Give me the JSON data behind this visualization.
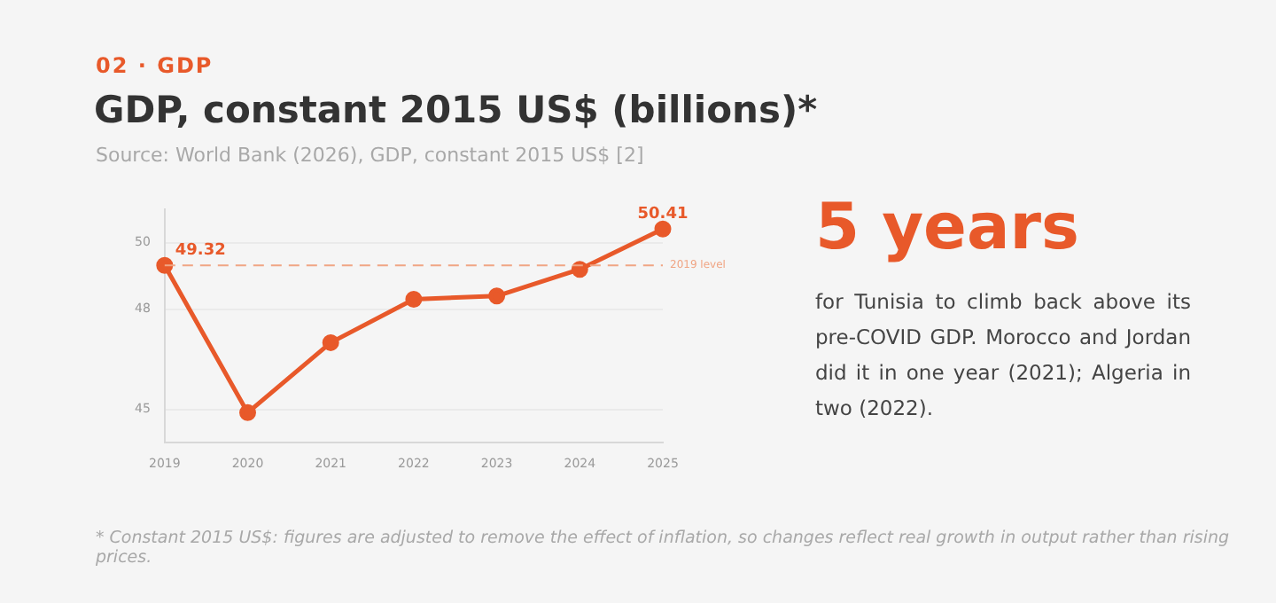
{
  "chart_data": {
    "type": "line",
    "title": "GDP, constant 2015 US$ (billions)*",
    "subtitle": "Source: World Bank (2026), GDP, constant 2015 US$ [2]",
    "categories": [
      "2019",
      "2020",
      "2021",
      "2022",
      "2023",
      "2024",
      "2025"
    ],
    "series": [
      {
        "color": "#e8592a",
        "values": [
          49.32,
          44.9,
          47.0,
          48.3,
          48.4,
          49.2,
          50.41
        ],
        "value_labels": [
          "49.32",
          null,
          null,
          null,
          null,
          null,
          "50.41"
        ]
      }
    ],
    "ylim": [
      44,
      51
    ],
    "yticks": [
      45,
      48,
      50
    ],
    "grid": "y",
    "legend": false,
    "marker": "circle",
    "line_style": "solid",
    "ref_lines": [
      {
        "axis": "y",
        "value": 49.32,
        "label": "2019 level",
        "color": "#f0a584",
        "line_style": "dashed"
      }
    ],
    "annotations": [
      "02 · GDP",
      "5 years",
      "for Tunisia to climb back above its pre-COVID GDP. Morocco and Jordan did it in one year (2021); Algeria in two (2022).",
      "* Constant 2015 US$: figures are adjusted to remove the effect of inflation, so changes reflect real growth in output rather than rising prices."
    ]
  }
}
